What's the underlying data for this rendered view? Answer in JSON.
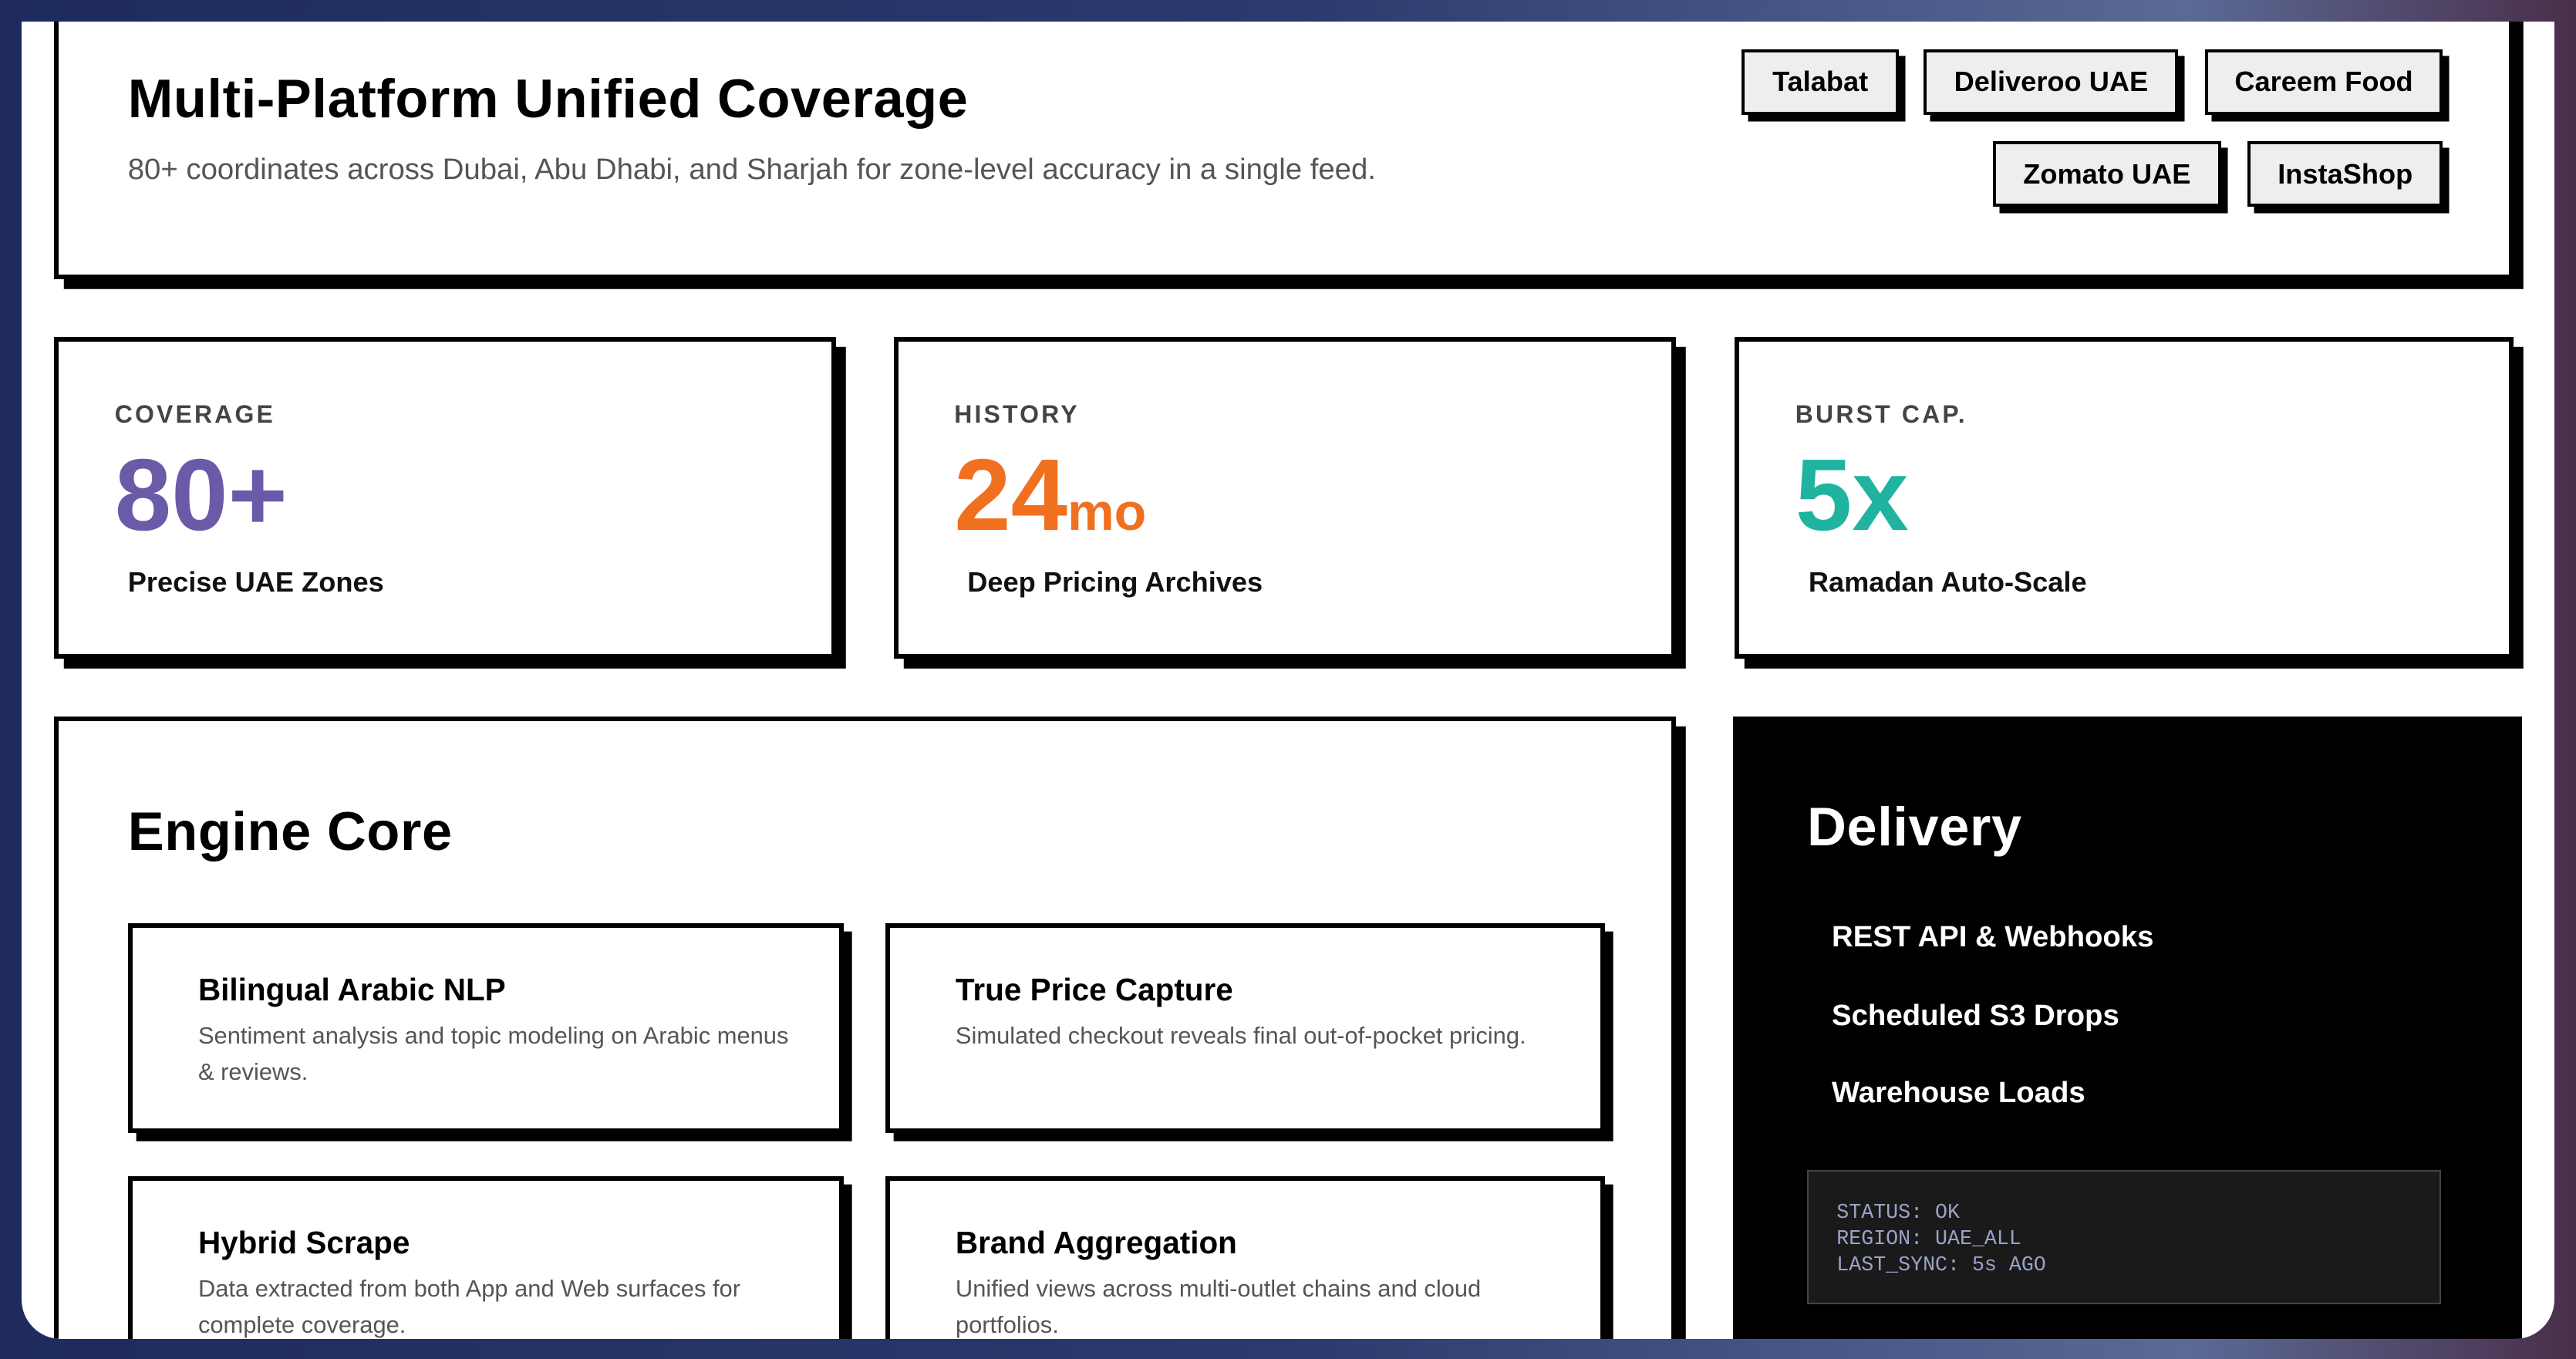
{
  "header": {
    "title": "Multi-Platform Unified Coverage",
    "subtitle": "80+ coordinates across Dubai, Abu Dhabi, and Sharjah for zone-level accuracy in a single feed.",
    "platforms": [
      "Talabat",
      "Deliveroo UAE",
      "Careem Food",
      "Zomato UAE",
      "InstaShop"
    ]
  },
  "stats": [
    {
      "label": "COVERAGE",
      "value": "80+",
      "unit": "",
      "desc": "Precise UAE Zones",
      "color": "#6a5aa8"
    },
    {
      "label": "HISTORY",
      "value": "24",
      "unit": "mo",
      "desc": "Deep Pricing Archives",
      "color": "#f07020"
    },
    {
      "label": "BURST CAP.",
      "value": "5x",
      "unit": "",
      "desc": "Ramadan Auto-Scale",
      "color": "#1fb3a0"
    }
  ],
  "engine": {
    "title": "Engine Core",
    "features": [
      {
        "title": "Bilingual Arabic NLP",
        "desc": "Sentiment analysis and topic modeling on Arabic menus & reviews."
      },
      {
        "title": "True Price Capture",
        "desc": "Simulated checkout reveals final out-of-pocket pricing."
      },
      {
        "title": "Hybrid Scrape",
        "desc": "Data extracted from both App and Web surfaces for complete coverage."
      },
      {
        "title": "Brand Aggregation",
        "desc": "Unified views across multi-outlet chains and cloud portfolios."
      }
    ]
  },
  "delivery": {
    "title": "Delivery",
    "items": [
      "REST API & Webhooks",
      "Scheduled S3 Drops",
      "Warehouse Loads"
    ],
    "status": [
      "STATUS: OK",
      "REGION: UAE_ALL",
      "LAST_SYNC: 5s AGO"
    ]
  }
}
